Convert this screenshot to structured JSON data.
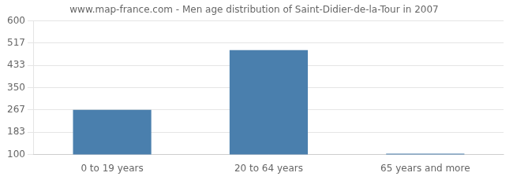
{
  "chart_data": {
    "type": "bar",
    "title": "www.map-france.com - Men age distribution of Saint-Didier-de-la-Tour in 2007",
    "categories": [
      "0 to 19 years",
      "20 to 64 years",
      "65 years and more"
    ],
    "values": [
      267,
      490,
      103
    ],
    "color": "#4a7fad",
    "ylim": [
      100,
      600
    ],
    "yticks": [
      100,
      183,
      267,
      350,
      433,
      517,
      600
    ],
    "grid": true
  }
}
